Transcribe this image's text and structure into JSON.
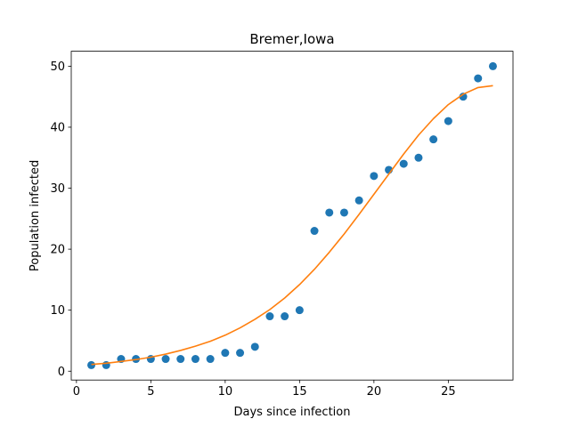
{
  "chart_data": {
    "type": "scatter",
    "title": "Bremer,Iowa",
    "xlabel": "Days since infection",
    "ylabel": "Population infected",
    "xlim": [
      -0.35,
      29.35
    ],
    "ylim": [
      -1.45,
      52.45
    ],
    "x_ticks": [
      0,
      5,
      10,
      15,
      20,
      25
    ],
    "y_ticks": [
      0,
      10,
      20,
      30,
      40,
      50
    ],
    "grid": false,
    "series": [
      {
        "kind": "scatter",
        "color": "#1f77b4",
        "x": [
          1,
          2,
          3,
          4,
          5,
          6,
          7,
          8,
          9,
          10,
          11,
          12,
          13,
          14,
          15,
          16,
          17,
          18,
          19,
          20,
          21,
          22,
          23,
          24,
          25,
          26,
          27,
          28
        ],
        "y": [
          1,
          1,
          2,
          2,
          2,
          2,
          2,
          2,
          2,
          3,
          3,
          4,
          9,
          9,
          10,
          23,
          26,
          26,
          28,
          32,
          33,
          34,
          35,
          38,
          41,
          45,
          48,
          50
        ]
      },
      {
        "kind": "line",
        "color": "#ff7f0e",
        "x": [
          1,
          2,
          3,
          4,
          5,
          6,
          7,
          8,
          9,
          10,
          11,
          12,
          13,
          14,
          15,
          16,
          17,
          18,
          19,
          20,
          21,
          22,
          23,
          24,
          25,
          26,
          27,
          28
        ],
        "y": [
          1.1,
          1.3,
          1.6,
          1.9,
          2.3,
          2.8,
          3.4,
          4.1,
          4.9,
          5.9,
          7.1,
          8.5,
          10.1,
          12.0,
          14.2,
          16.7,
          19.5,
          22.5,
          25.7,
          29.0,
          32.3,
          35.6,
          38.7,
          41.4,
          43.7,
          45.4,
          46.5,
          46.8
        ]
      }
    ]
  }
}
